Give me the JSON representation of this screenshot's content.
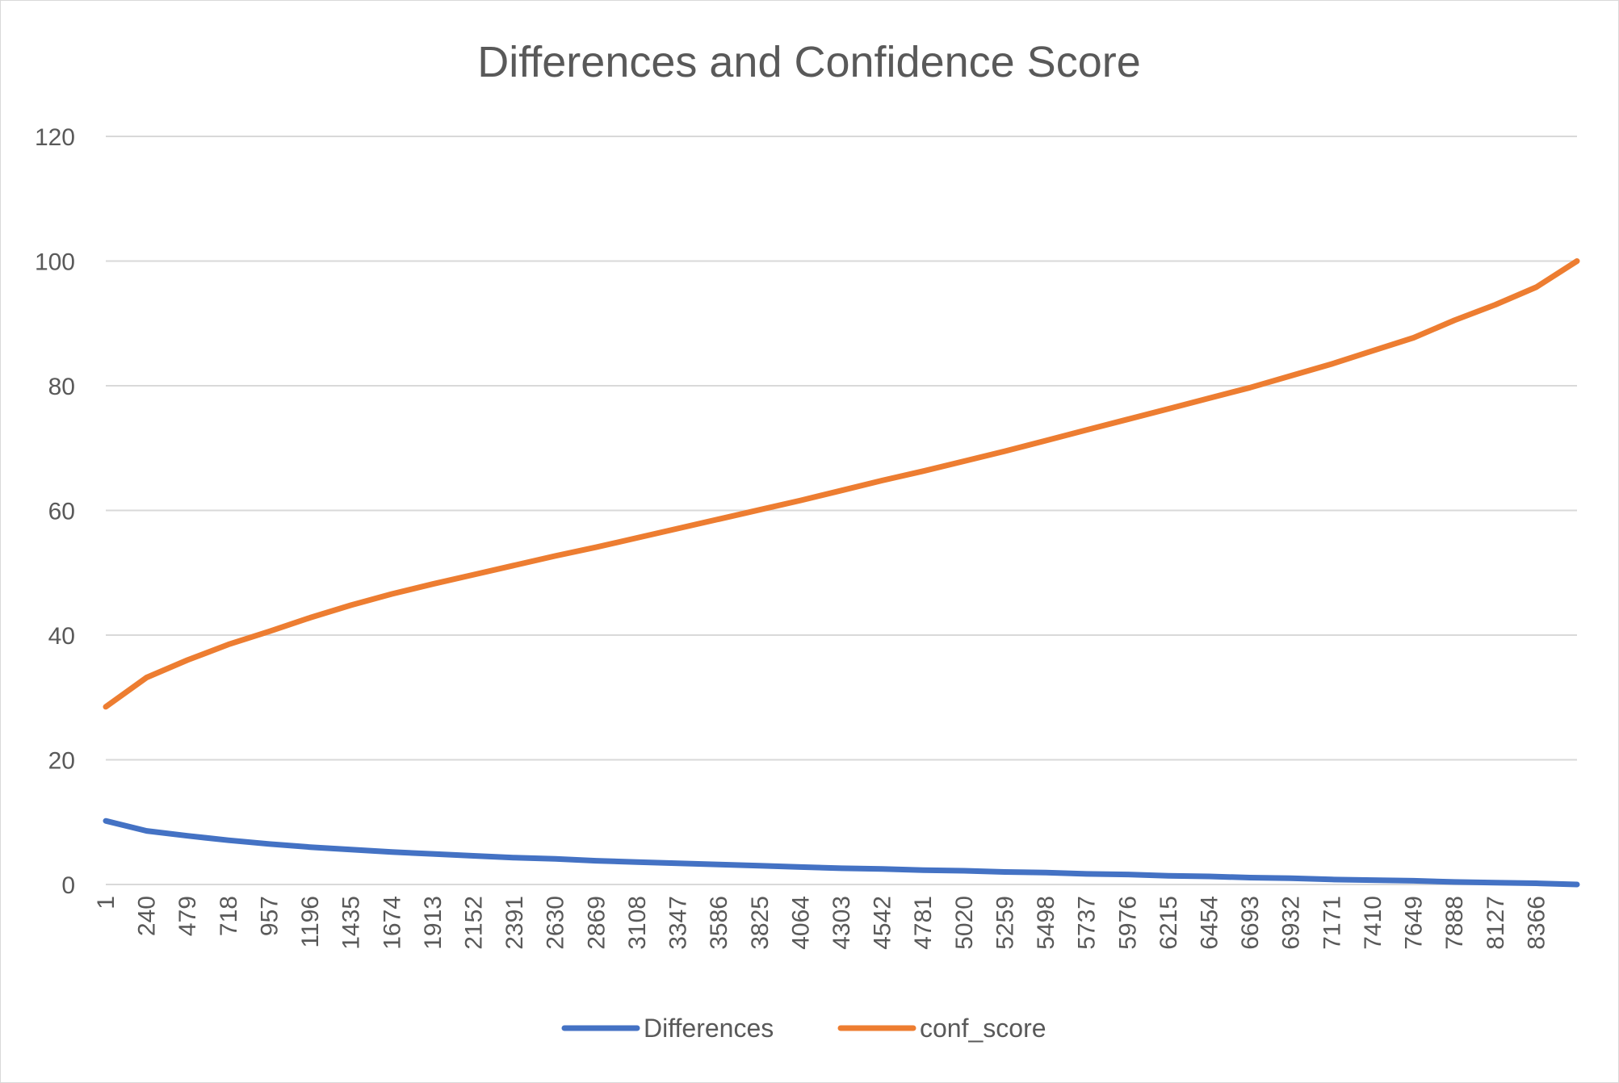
{
  "chart_data": {
    "type": "line",
    "title": "Differences and Confidence Score",
    "xlabel": "",
    "ylabel": "",
    "ylim": [
      0,
      120
    ],
    "yticks": [
      "0",
      "20",
      "40",
      "60",
      "80",
      "100",
      "120"
    ],
    "xlim": [
      1,
      8605
    ],
    "xticks": [
      "1",
      "240",
      "479",
      "718",
      "957",
      "1196",
      "1435",
      "1674",
      "1913",
      "2152",
      "2391",
      "2630",
      "2869",
      "3108",
      "3347",
      "3586",
      "3825",
      "4064",
      "4303",
      "4542",
      "4781",
      "5020",
      "5259",
      "5498",
      "5737",
      "5976",
      "6215",
      "6454",
      "6693",
      "6932",
      "7171",
      "7410",
      "7649",
      "7888",
      "8127",
      "8366"
    ],
    "grid": true,
    "legend_position": "bottom",
    "series": [
      {
        "name": "Differences",
        "color": "#4472C4",
        "x": [
          1,
          240,
          479,
          718,
          957,
          1196,
          1435,
          1674,
          1913,
          2152,
          2391,
          2630,
          2869,
          3108,
          3347,
          3586,
          3825,
          4064,
          4303,
          4542,
          4781,
          5020,
          5259,
          5498,
          5737,
          5976,
          6215,
          6454,
          6693,
          6932,
          7171,
          7410,
          7649,
          7888,
          8127,
          8366,
          8605
        ],
        "values": [
          10.2,
          8.6,
          7.8,
          7.1,
          6.5,
          6.0,
          5.6,
          5.2,
          4.9,
          4.6,
          4.3,
          4.1,
          3.8,
          3.6,
          3.4,
          3.2,
          3.0,
          2.8,
          2.6,
          2.5,
          2.3,
          2.2,
          2.0,
          1.9,
          1.7,
          1.6,
          1.4,
          1.3,
          1.1,
          1.0,
          0.8,
          0.7,
          0.6,
          0.4,
          0.3,
          0.2,
          0.0
        ]
      },
      {
        "name": "conf_score",
        "color": "#ED7D31",
        "x": [
          1,
          240,
          479,
          718,
          957,
          1196,
          1435,
          1674,
          1913,
          2152,
          2391,
          2630,
          2869,
          3108,
          3347,
          3586,
          3825,
          4064,
          4303,
          4542,
          4781,
          5020,
          5259,
          5498,
          5737,
          5976,
          6215,
          6454,
          6693,
          6932,
          7171,
          7410,
          7649,
          7888,
          8127,
          8366,
          8605
        ],
        "values": [
          28.5,
          33.2,
          36.0,
          38.5,
          40.6,
          42.8,
          44.8,
          46.6,
          48.2,
          49.7,
          51.2,
          52.7,
          54.1,
          55.6,
          57.1,
          58.6,
          60.1,
          61.6,
          63.2,
          64.8,
          66.3,
          67.9,
          69.5,
          71.2,
          72.9,
          74.6,
          76.3,
          78.0,
          79.7,
          81.6,
          83.5,
          85.6,
          87.7,
          90.5,
          93.0,
          95.8,
          100.0
        ]
      }
    ]
  }
}
